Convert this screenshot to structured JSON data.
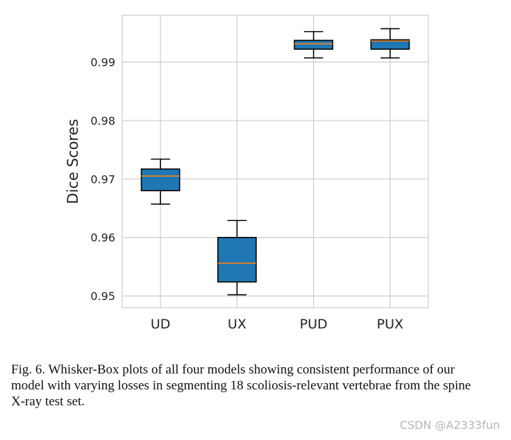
{
  "chart_data": {
    "type": "box",
    "title": "",
    "xlabel": "",
    "ylabel": "Dice Scores",
    "ylim": [
      0.948,
      0.998
    ],
    "yticks": [
      0.95,
      0.96,
      0.97,
      0.98,
      0.99
    ],
    "ytick_labels": [
      "0.95",
      "0.96",
      "0.97",
      "0.98",
      "0.99"
    ],
    "grid": true,
    "box_color": "#1f77b4",
    "median_color": "#ff7f0e",
    "edge_color": "#000000",
    "grid_color": "#cccccc",
    "categories": [
      "UD",
      "UX",
      "PUD",
      "PUX"
    ],
    "series": [
      {
        "name": "UD",
        "whisker_low": 0.9657,
        "q1": 0.968,
        "median": 0.9705,
        "q3": 0.9717,
        "whisker_high": 0.9734
      },
      {
        "name": "UX",
        "whisker_low": 0.9502,
        "q1": 0.9524,
        "median": 0.9556,
        "q3": 0.96,
        "whisker_high": 0.9629
      },
      {
        "name": "PUD",
        "whisker_low": 0.9907,
        "q1": 0.9922,
        "median": 0.9931,
        "q3": 0.9937,
        "whisker_high": 0.9952
      },
      {
        "name": "PUX",
        "whisker_low": 0.9907,
        "q1": 0.9922,
        "median": 0.9936,
        "q3": 0.9938,
        "whisker_high": 0.9957
      }
    ]
  },
  "caption": "Fig. 6.  Whisker-Box plots of all four models showing consistent performance of our model with varying losses in segmenting 18 scoliosis-relevant vertebrae from the spine X-ray test set.",
  "watermark": "CSDN @A2333fun"
}
